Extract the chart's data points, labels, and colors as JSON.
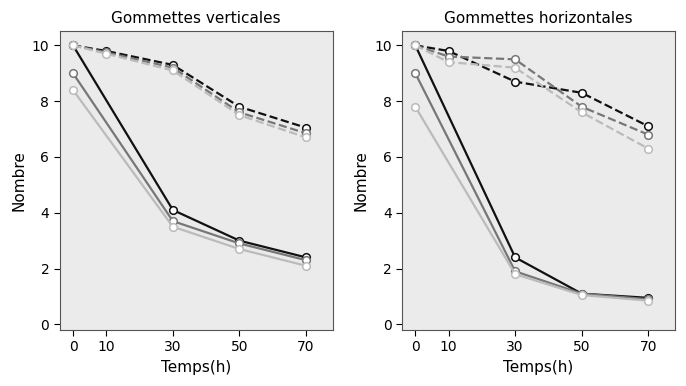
{
  "left_title": "Gommettes verticales",
  "right_title": "Gommettes horizontales",
  "xlabel": "Temps(h)",
  "ylabel": "Nombre",
  "xticks": [
    0,
    10,
    30,
    50,
    70
  ],
  "ylim": [
    -0.2,
    10.5
  ],
  "yticks": [
    0,
    2,
    4,
    6,
    8,
    10
  ],
  "left": {
    "solid": [
      {
        "x": [
          0,
          30,
          50,
          70
        ],
        "y": [
          10.0,
          4.1,
          3.0,
          2.4
        ],
        "color": "#111111"
      },
      {
        "x": [
          0,
          30,
          50,
          70
        ],
        "y": [
          9.0,
          3.7,
          2.9,
          2.3
        ],
        "color": "#777777"
      },
      {
        "x": [
          0,
          30,
          50,
          70
        ],
        "y": [
          8.4,
          3.5,
          2.7,
          2.1
        ],
        "color": "#bbbbbb"
      }
    ],
    "dashed": [
      {
        "x": [
          0,
          10,
          30,
          50,
          70
        ],
        "y": [
          10.0,
          9.8,
          9.3,
          7.8,
          7.05
        ],
        "color": "#111111"
      },
      {
        "x": [
          0,
          10,
          30,
          50,
          70
        ],
        "y": [
          10.0,
          9.75,
          9.2,
          7.6,
          6.85
        ],
        "color": "#777777"
      },
      {
        "x": [
          0,
          10,
          30,
          50,
          70
        ],
        "y": [
          10.0,
          9.7,
          9.1,
          7.5,
          6.7
        ],
        "color": "#bbbbbb"
      }
    ]
  },
  "right": {
    "solid": [
      {
        "x": [
          0,
          30,
          50,
          70
        ],
        "y": [
          10.0,
          2.4,
          1.1,
          0.95
        ],
        "color": "#111111"
      },
      {
        "x": [
          0,
          30,
          50,
          70
        ],
        "y": [
          9.0,
          1.9,
          1.1,
          0.9
        ],
        "color": "#777777"
      },
      {
        "x": [
          0,
          30,
          50,
          70
        ],
        "y": [
          7.8,
          1.8,
          1.05,
          0.85
        ],
        "color": "#bbbbbb"
      }
    ],
    "dashed": [
      {
        "x": [
          0,
          10,
          30,
          50,
          70
        ],
        "y": [
          10.0,
          9.8,
          8.7,
          8.3,
          7.1
        ],
        "color": "#111111"
      },
      {
        "x": [
          0,
          10,
          30,
          50,
          70
        ],
        "y": [
          10.0,
          9.6,
          9.5,
          7.8,
          6.8
        ],
        "color": "#777777"
      },
      {
        "x": [
          0,
          10,
          30,
          50,
          70
        ],
        "y": [
          10.0,
          9.4,
          9.2,
          7.6,
          6.3
        ],
        "color": "#bbbbbb"
      }
    ]
  },
  "linewidth": 1.6,
  "markersize": 5.5
}
